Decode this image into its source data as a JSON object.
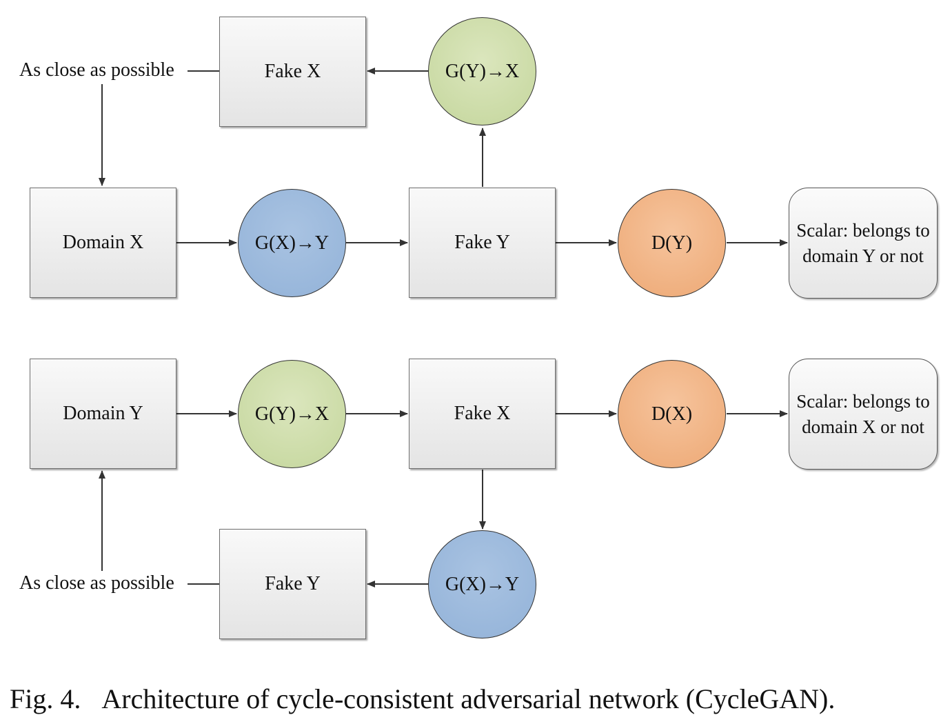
{
  "top_cycle": {
    "close_label": "As close as possible",
    "fake_x_box": "Fake X",
    "gen_y_to_x": "G(Y)→X",
    "domain_x": "Domain X",
    "gen_x_to_y": "G(X)→Y",
    "fake_y_box": "Fake Y",
    "discriminator": "D(Y)",
    "scalar_output": "Scalar: belongs to domain Y or not"
  },
  "bottom_cycle": {
    "domain_y": "Domain Y",
    "gen_y_to_x": "G(Y)→X",
    "fake_x_box": "Fake X",
    "discriminator": "D(X)",
    "scalar_output": "Scalar: belongs to domain X or not",
    "close_label": "As close as possible",
    "fake_y_box": "Fake Y",
    "gen_x_to_y": "G(X)→Y"
  },
  "caption": {
    "number": "Fig. 4.",
    "text": "Architecture of cycle-consistent adversarial network (CycleGAN)."
  },
  "colors": {
    "green_node": "#c4d69c",
    "blue_node": "#92b2d8",
    "orange_node": "#eda874",
    "box_fill": "#eeeeee",
    "line": "#333333"
  }
}
